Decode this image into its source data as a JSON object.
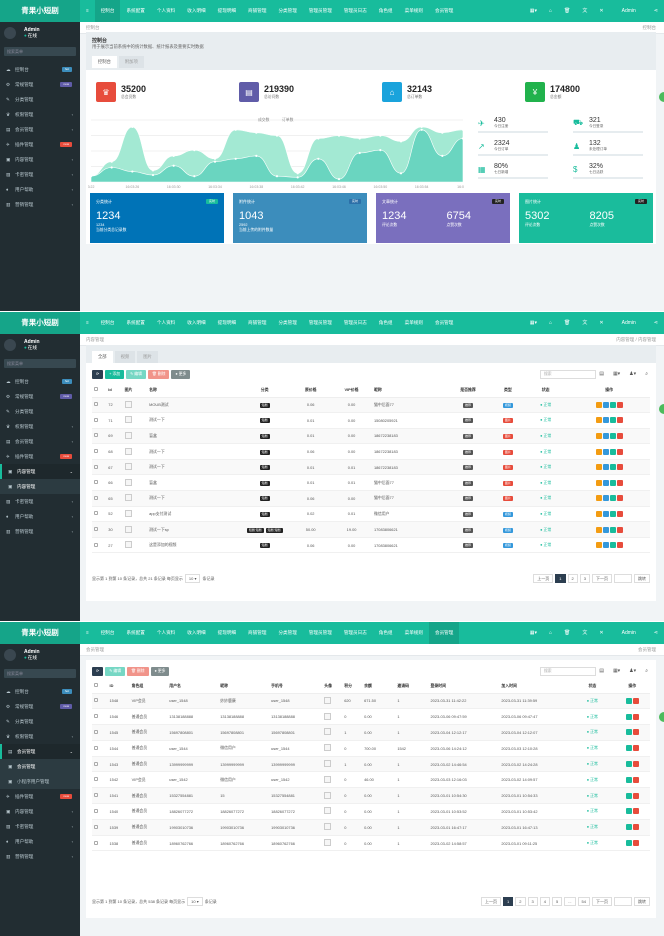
{
  "colors": {
    "primary": "#18bc9c",
    "sidebar": "#222d32",
    "danger": "#e74c3c",
    "info": "#3498db",
    "warning": "#f39c12",
    "dark": "#2c3e50"
  },
  "header": {
    "logo": "青果小短剧",
    "nav": [
      "≡",
      "控制台",
      "系统配置",
      "个人资料",
      "收入明细",
      "提现明细",
      "商铺管理",
      "分类管理",
      "管理员管理",
      "管理员日志",
      "角色组",
      "菜单规则",
      "会员管理"
    ],
    "right": [
      "▦▾",
      "⌂",
      "🗑",
      "文",
      "✕"
    ],
    "user": "Admin",
    "share": "⋖"
  },
  "sidebar": {
    "user": "Admin",
    "status": "在线",
    "search_placeholder": "搜索菜单",
    "items": [
      {
        "label": "控制台",
        "icon": "☁",
        "badge": "hot",
        "badge_color": "#3c8dbc"
      },
      {
        "label": "常规管理",
        "icon": "⚙",
        "badge": "new",
        "badge_color": "#605ca8"
      },
      {
        "label": "分类管理",
        "icon": "✎"
      },
      {
        "label": "权限管理",
        "icon": "♛",
        "arrow": "‹"
      },
      {
        "label": "会员管理",
        "icon": "▤",
        "arrow": "‹"
      },
      {
        "label": "插件管理",
        "icon": "✈",
        "badge": "new",
        "badge_color": "#e74c3c"
      },
      {
        "label": "内容管理",
        "icon": "▣",
        "arrow": "‹"
      },
      {
        "label": "卡密管理",
        "icon": "▨",
        "arrow": "‹"
      },
      {
        "label": "用户帮助",
        "icon": "♦",
        "arrow": "‹"
      },
      {
        "label": "营销管理",
        "icon": "▥",
        "arrow": "‹"
      }
    ],
    "sub_content": [
      "内容管理"
    ],
    "sub_member": [
      "会员管理",
      "小程序用户管理"
    ]
  },
  "dashboard": {
    "crumb": "控制台",
    "crumb_right": "控制台",
    "title": "控制台",
    "desc": "用于展示当前系统中的统计数据、统计报表及重要实时数据",
    "tabs": [
      "控制台",
      "附加项"
    ],
    "stats": [
      {
        "value": "35200",
        "label": "总会员数",
        "icon": "♛",
        "color": "#e74c3c"
      },
      {
        "value": "219390",
        "label": "总访问数",
        "icon": "▤",
        "color": "#605ca8"
      },
      {
        "value": "32143",
        "label": "总订单数",
        "icon": "⌂",
        "color": "#1aa3dc"
      },
      {
        "value": "174800",
        "label": "总金额",
        "icon": "¥",
        "color": "#21b24c"
      }
    ],
    "right_stats": [
      {
        "value": "430",
        "label": "今日注册",
        "icon": "✈"
      },
      {
        "value": "321",
        "label": "今日登录",
        "icon": "⛟"
      },
      {
        "value": "2324",
        "label": "今日订单",
        "icon": "↗"
      },
      {
        "value": "132",
        "label": "未处理订单",
        "icon": "♟"
      },
      {
        "value": "80%",
        "label": "七日新增",
        "icon": "▦"
      },
      {
        "value": "32%",
        "label": "七日活跃",
        "icon": "$"
      }
    ],
    "cards": [
      {
        "title": "分类统计",
        "tag": "实时",
        "value": "1234",
        "sub": "1234",
        "desc": "当前分类总记录数",
        "color": "#0073b7",
        "tagc": "#18bc9c"
      },
      {
        "title": "附件统计",
        "tag": "实时",
        "value": "1043",
        "sub": "2592",
        "desc": "当前上传的附件数量",
        "color": "#3c8dbc",
        "tagc": "#2c6fa8"
      },
      {
        "title": "文章统计",
        "tag": "实时",
        "v1": "1234",
        "l1": "评论次数",
        "v2": "6754",
        "l2": "点赞次数",
        "color": "#7a6fbe",
        "tagc": "#222"
      },
      {
        "title": "图片统计",
        "tag": "实时",
        "v1": "5302",
        "l1": "评论次数",
        "v2": "8205",
        "l2": "点赞次数",
        "color": "#1abc9c",
        "tagc": "#222"
      }
    ]
  },
  "chart_data": {
    "type": "area",
    "legend": [
      "成交数",
      "订单数"
    ],
    "legend_position": "top",
    "grid": true,
    "x": [
      "3:22",
      "",
      "16:03:26",
      "",
      "16:03:30",
      "",
      "16:03:34",
      "",
      "16:03:38",
      "",
      "16:03:42",
      "",
      "16:03:46",
      "",
      "16:03:50",
      "",
      "16:03:54",
      "",
      "16:03:5"
    ],
    "series": [
      {
        "name": "成交数",
        "color": "#a3e9d3",
        "values": [
          10,
          35,
          95,
          20,
          45,
          55,
          40,
          90,
          85,
          80,
          15,
          75,
          80,
          75,
          80,
          70,
          95,
          85,
          90
        ]
      },
      {
        "name": "订单数",
        "color": "#6ad5c0",
        "values": [
          10,
          25,
          18,
          12,
          28,
          10,
          35,
          40,
          45,
          10,
          8,
          40,
          5,
          50,
          55,
          15,
          90,
          45,
          75
        ]
      }
    ]
  },
  "content": {
    "crumb": "内容管理",
    "crumb_right": "内容管理 / 内容管理",
    "tabs": [
      "全部",
      "视频",
      "图片"
    ],
    "toolbar": [
      "⟳",
      "+ 添加",
      "✎ 编辑",
      "🗑 删除",
      "● 更多"
    ],
    "search_placeholder": "搜索",
    "columns": [
      "",
      "Id",
      "图片",
      "名称",
      "分类",
      "原价格",
      "VIP价格",
      "昵称",
      "是否推荐",
      "类型",
      "状态",
      "操作"
    ],
    "rows": [
      [
        "72",
        "MOUB测试",
        "短剧",
        "0.06",
        "0.00",
        "猫中后面77",
        "推荐",
        "视频",
        "正常"
      ],
      [
        "71",
        "测试一下",
        "短剧",
        "0.01",
        "0.00",
        "15080205921",
        "推荐",
        "图片",
        "正常"
      ],
      [
        "69",
        "盲盒",
        "短剧",
        "0.01",
        "0.00",
        "18672238183",
        "推荐",
        "图片",
        "正常"
      ],
      [
        "68",
        "测试一下",
        "短剧",
        "0.06",
        "0.00",
        "18672238183",
        "推荐",
        "图片",
        "正常"
      ],
      [
        "67",
        "测试一下",
        "短剧",
        "0.01",
        "0.01",
        "18672238183",
        "推荐",
        "图片",
        "正常"
      ],
      [
        "66",
        "盲盒",
        "短剧",
        "0.01",
        "0.01",
        "猫中后面77",
        "推荐",
        "图片",
        "正常"
      ],
      [
        "65",
        "测试一下",
        "短剧",
        "0.06",
        "0.00",
        "猫中后面77",
        "推荐",
        "图片",
        "正常"
      ],
      [
        "52",
        "app支付测试",
        "短剧",
        "0.02",
        "0.01",
        "微信用户",
        "推荐",
        "视频",
        "正常"
      ],
      [
        "30",
        "测试一下sp",
        "短剧 短剧",
        "50.00",
        "19.00",
        "17083806621",
        "推荐",
        "视频",
        "正常"
      ],
      [
        "27",
        "这是添加的视频",
        "短剧",
        "0.06",
        "0.00",
        "17083806621",
        "推荐",
        "视频",
        "正常"
      ]
    ],
    "pagination": {
      "info": "显示第 1 到第 10 条记录，总共 21 条记录 每页显示",
      "per_page": "10 ▾",
      "suffix": "条记录",
      "pages": [
        "上一页",
        "1",
        "2",
        "3",
        "下一页"
      ],
      "current": "1",
      "jump": "跳转"
    }
  },
  "members": {
    "crumb": "会员管理",
    "crumb_right": "会员管理",
    "toolbar": [
      "⟳",
      "✎ 编辑",
      "🗑 删除",
      "● 更多"
    ],
    "search_placeholder": "搜索",
    "columns": [
      "",
      "ID",
      "角色组",
      "用户名",
      "昵称",
      "手机号",
      "头像",
      "积分",
      "余额",
      "邀请码",
      "登录时间",
      "加入时间",
      "状态",
      "操作"
    ],
    "rows": [
      [
        "1548",
        "VIP会员",
        "user_1548",
        "妙妙鹿康",
        "user_1548",
        "620",
        "671.50",
        "1",
        "2023-03-31 11:42:22",
        "2023-03-31 11:39:59"
      ],
      [
        "1546",
        "普通会员",
        "13138188888",
        "13138188888",
        "13138188888",
        "0",
        "0.00",
        "1",
        "2023-03-06 09:47:59",
        "2023-03-06 09:47:47"
      ],
      [
        "1545",
        "普通会员",
        "15697808801",
        "15697808801",
        "15697808801",
        "1",
        "0.00",
        "1",
        "2023-03-04 12:12:17",
        "2023-03-04 12:12:07"
      ],
      [
        "1544",
        "普通会员",
        "user_1544",
        "微信用户",
        "user_1544",
        "0",
        "700.00",
        "1542",
        "2023-03-06 14:24:12",
        "2023-03-03 12:10:28"
      ],
      [
        "1543",
        "普通会员",
        "13999999999",
        "13999999999",
        "13999999999",
        "1",
        "0.00",
        "1",
        "2023-03-02 14:46:54",
        "2023-03-02 14:24:28"
      ],
      [
        "1542",
        "VIP会员",
        "user_1542",
        "微信用户",
        "user_1542",
        "0",
        "46.00",
        "1",
        "2023-03-03 12:16:03",
        "2023-03-02 14:09:57"
      ],
      [
        "1541",
        "普通会员",
        "15327554881",
        "15",
        "15327554881",
        "0",
        "0.00",
        "1",
        "2023-03-01 10:54:30",
        "2023-03-01 10:54:33"
      ],
      [
        "1540",
        "普通会员",
        "18826077272",
        "18826077272",
        "18826077272",
        "0",
        "0.00",
        "1",
        "2023-03-01 10:53:52",
        "2023-03-01 10:53:42"
      ],
      [
        "1539",
        "普通会员",
        "19903010736",
        "19903010736",
        "19903010736",
        "0",
        "0.00",
        "1",
        "2023-03-01 16:47:17",
        "2023-03-01 16:47:13"
      ],
      [
        "1538",
        "普通会员",
        "18960762766",
        "18960762766",
        "18960762766",
        "0",
        "0.00",
        "1",
        "2023-03-02 14:58:57",
        "2023-03-01 09:11:25"
      ]
    ],
    "status": "正常",
    "pagination": {
      "info": "显示第 1 到第 10 条记录，总共 538 条记录 每页显示",
      "per_page": "10 ▾",
      "suffix": "条记录",
      "pages": [
        "上一页",
        "1",
        "2",
        "3",
        "4",
        "5",
        "...",
        "54",
        "下一页"
      ],
      "current": "1",
      "jump": "跳转"
    }
  }
}
